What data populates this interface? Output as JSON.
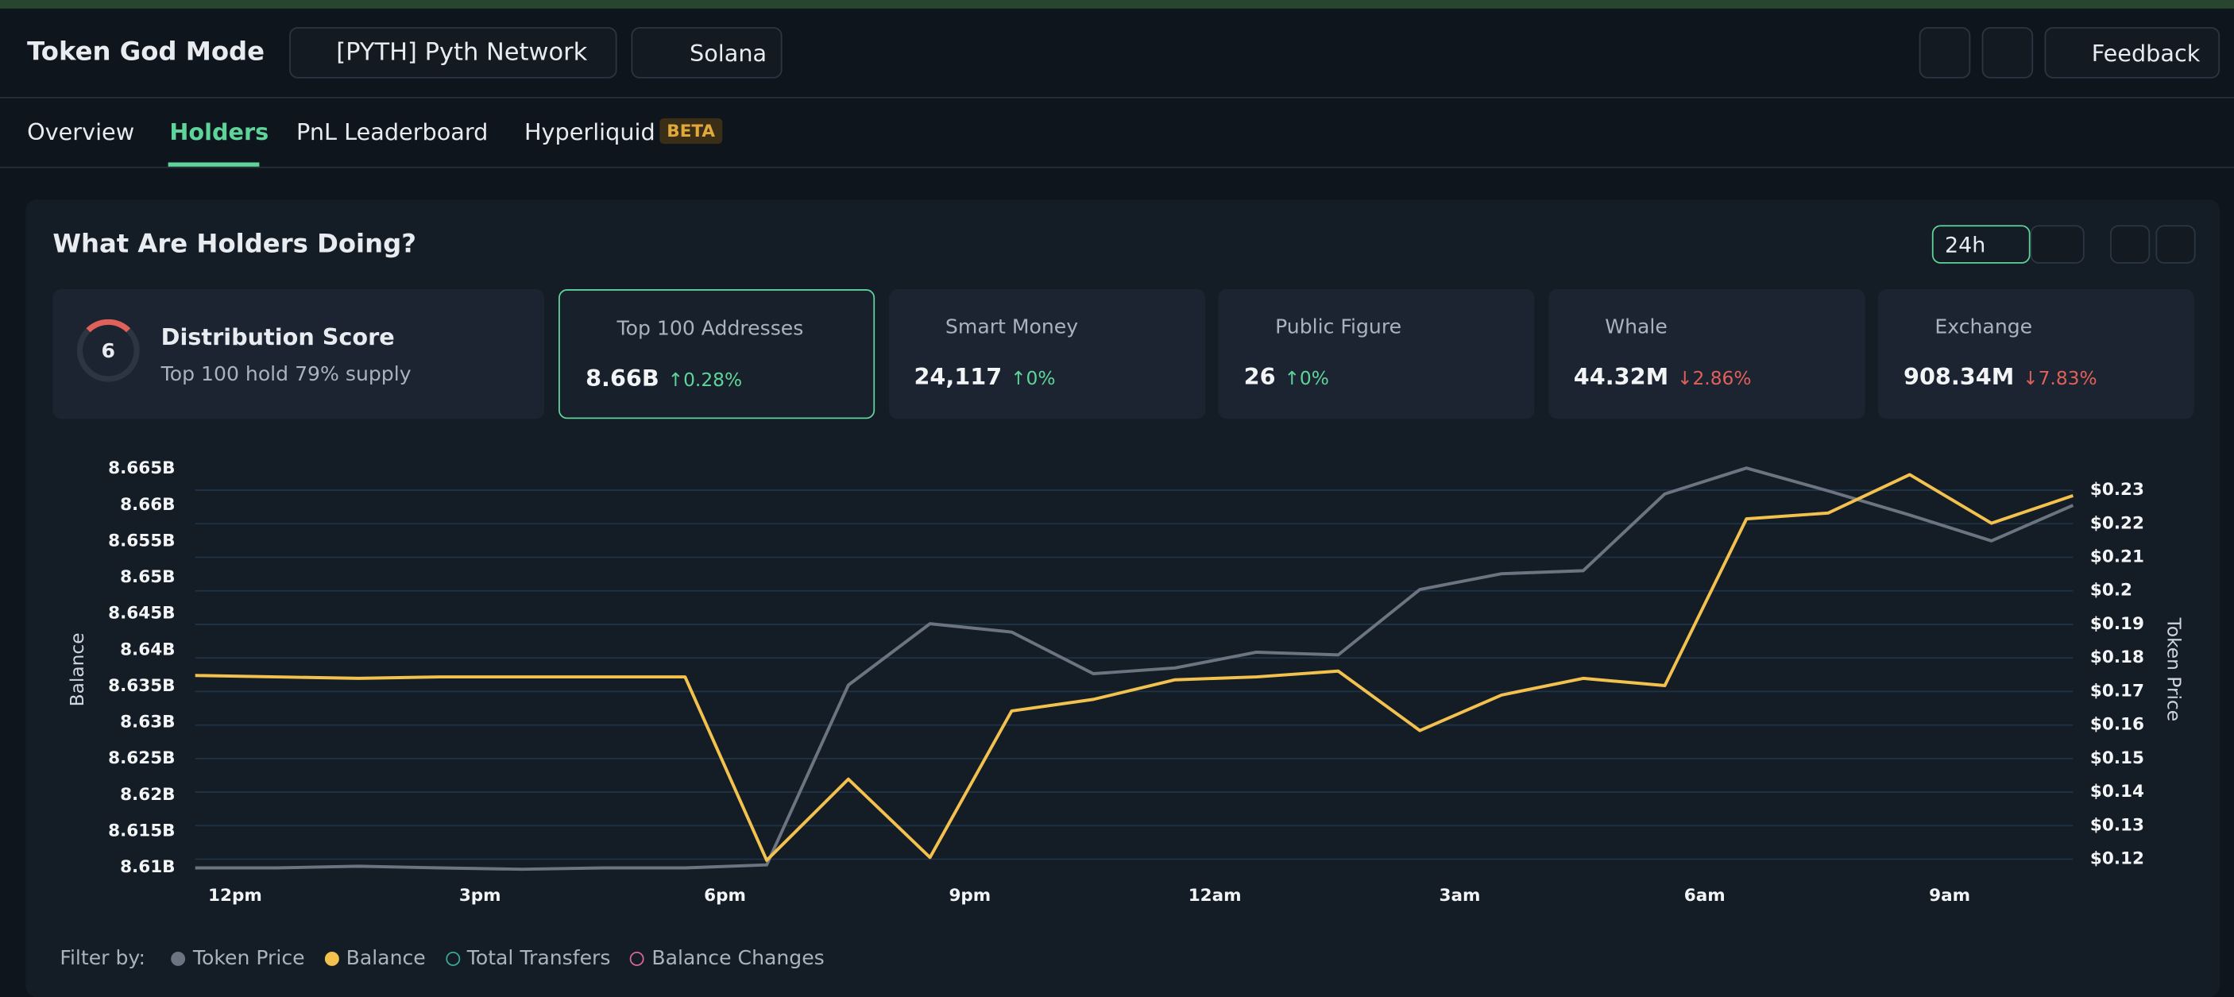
{
  "header": {
    "title": "Token God Mode",
    "token": "[PYTH] Pyth Network",
    "chain": "Solana",
    "feedback": "Feedback"
  },
  "tabs": [
    "Overview",
    "Holders",
    "PnL Leaderboard",
    "Hyperliquid"
  ],
  "beta": "BETA",
  "panel": {
    "title": "What Are Holders Doing?",
    "period": "24h"
  },
  "distribution": {
    "score": "6",
    "title": "Distribution Score",
    "subtitle": "Top 100 hold 79% supply"
  },
  "cards": [
    {
      "title": "Top 100 Addresses",
      "value": "8.66B",
      "change": "0.28%",
      "direction": "up"
    },
    {
      "title": "Smart Money",
      "value": "24,117",
      "change": "0%",
      "direction": "up"
    },
    {
      "title": "Public Figure",
      "value": "26",
      "change": "0%",
      "direction": "up"
    },
    {
      "title": "Whale",
      "value": "44.32M",
      "change": "2.86%",
      "direction": "down"
    },
    {
      "title": "Exchange",
      "value": "908.34M",
      "change": "7.83%",
      "direction": "down"
    }
  ],
  "chart_data": {
    "type": "line",
    "categories": [
      "12pm",
      null,
      null,
      "3pm",
      null,
      null,
      "6pm",
      null,
      null,
      "9pm",
      null,
      null,
      "12am",
      null,
      null,
      "3am",
      null,
      null,
      "6am",
      null,
      null,
      "9am",
      null,
      null
    ],
    "series": [
      {
        "name": "Token Price",
        "color": "#6b7480",
        "axis": "y2",
        "values": [
          0.1174,
          0.1174,
          0.1179,
          0.1174,
          0.117,
          0.1174,
          0.1174,
          0.1183,
          0.1719,
          0.1902,
          0.1877,
          0.1753,
          0.177,
          0.1817,
          0.1809,
          0.2004,
          0.2051,
          0.206,
          0.2289,
          0.2366,
          0.2298,
          0.2226,
          0.2149,
          0.2255
        ]
      },
      {
        "name": "Balance",
        "color": "#f2c14e",
        "values": [
          8.6365,
          8.6363,
          8.6361,
          8.6363,
          8.6363,
          8.6363,
          8.6363,
          8.611,
          8.6222,
          8.6114,
          8.6316,
          8.6332,
          8.6359,
          8.6363,
          8.6371,
          8.6289,
          8.6338,
          8.6361,
          8.6351,
          8.6581,
          8.6589,
          8.6642,
          8.6575,
          8.6613
        ]
      }
    ],
    "ylabel": "Balance",
    "y2label": "Token Price",
    "ylim": [
      8.6094,
      8.6658
    ],
    "yticks": [
      {
        "value": 8.61,
        "label": "8.61B"
      },
      {
        "value": 8.615,
        "label": "8.615B"
      },
      {
        "value": 8.62,
        "label": "8.62B"
      },
      {
        "value": 8.625,
        "label": "8.625B"
      },
      {
        "value": 8.63,
        "label": "8.63B"
      },
      {
        "value": 8.635,
        "label": "8.635B"
      },
      {
        "value": 8.64,
        "label": "8.64B"
      },
      {
        "value": 8.645,
        "label": "8.645B"
      },
      {
        "value": 8.65,
        "label": "8.65B"
      },
      {
        "value": 8.655,
        "label": "8.655B"
      },
      {
        "value": 8.66,
        "label": "8.66B"
      },
      {
        "value": 8.665,
        "label": "8.665B"
      }
    ],
    "y2lim": [
      0.1162,
      0.2381
    ],
    "y2ticks": [
      {
        "value": 0.12,
        "label": "$0.12"
      },
      {
        "value": 0.13,
        "label": "$0.13"
      },
      {
        "value": 0.14,
        "label": "$0.14"
      },
      {
        "value": 0.15,
        "label": "$0.15"
      },
      {
        "value": 0.16,
        "label": "$0.16"
      },
      {
        "value": 0.17,
        "label": "$0.17"
      },
      {
        "value": 0.18,
        "label": "$0.18"
      },
      {
        "value": 0.19,
        "label": "$0.19"
      },
      {
        "value": 0.2,
        "label": "$0.2"
      },
      {
        "value": 0.21,
        "label": "$0.21"
      },
      {
        "value": 0.22,
        "label": "$0.22"
      },
      {
        "value": 0.23,
        "label": "$0.23"
      }
    ],
    "grid": true
  },
  "legend": {
    "label": "Filter by:",
    "extra": [
      {
        "name": "Total Transfers",
        "color": "#3aa89a"
      },
      {
        "name": "Balance Changes",
        "color": "#d9669a"
      }
    ]
  }
}
